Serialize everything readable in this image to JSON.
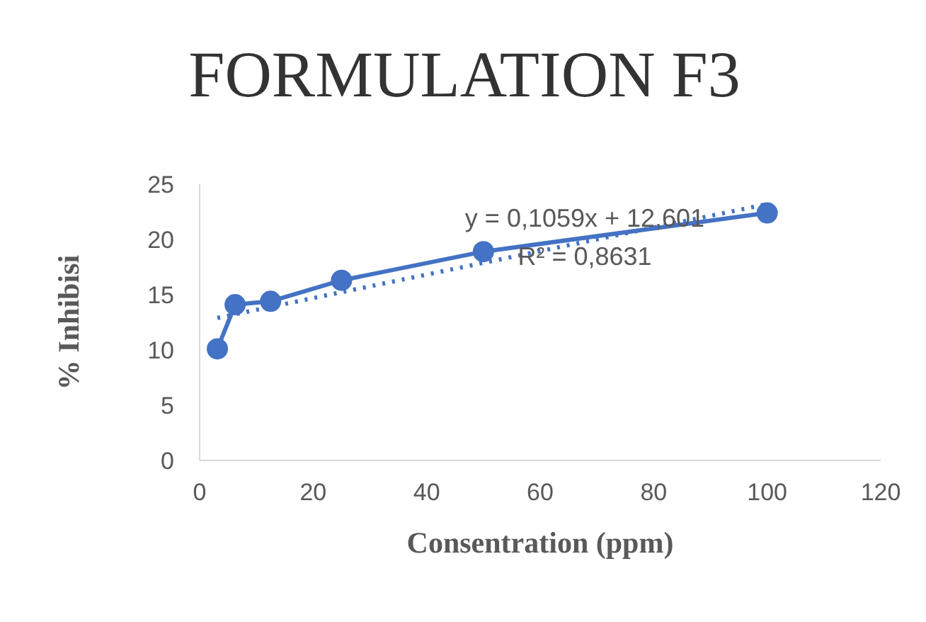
{
  "chart_data": {
    "type": "line",
    "title": "FORMULATION F3",
    "xlabel": "Consentration (ppm)",
    "ylabel": "% Inhibisi",
    "x": [
      3.125,
      6.25,
      12.5,
      25,
      50,
      100
    ],
    "series": [
      {
        "color": "#4472c4",
        "values": [
          10.1,
          14.1,
          14.4,
          16.3,
          18.9,
          22.4
        ],
        "marker": "circle",
        "line_style": "solid"
      },
      {
        "type": "line",
        "x": [
          3.125,
          100
        ],
        "color": "#4472c4",
        "values": [
          12.9,
          23.2
        ],
        "marker": "none",
        "line_style": "dotted"
      }
    ],
    "xlim": [
      0,
      120
    ],
    "xticks": [
      0,
      20,
      40,
      60,
      80,
      100,
      120
    ],
    "ylim": [
      0,
      25
    ],
    "yticks": [
      0,
      5,
      10,
      15,
      20,
      25
    ],
    "annotations": [
      "y = 0,1059x + 12,601",
      "R² = 0,8631"
    ]
  }
}
